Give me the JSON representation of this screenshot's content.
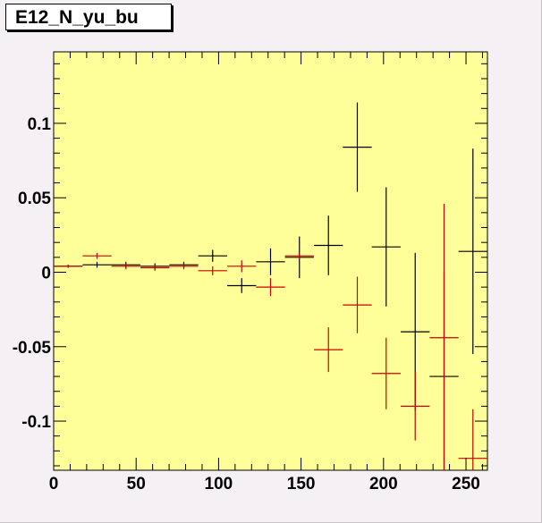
{
  "title": "E12_N_yu_bu",
  "colors": {
    "canvas": "#f4f0f4",
    "plot_background": "#ffff99",
    "axes": "#000000",
    "series_black": "#000000",
    "series_red": "#cc0000"
  },
  "chart_data": {
    "type": "scatter",
    "title": "E12_N_yu_bu",
    "xlabel": "",
    "ylabel": "",
    "xlim": [
      0,
      263
    ],
    "ylim": [
      -0.133,
      0.148
    ],
    "grid": false,
    "legend": "none",
    "x_ticks": [
      0,
      50,
      100,
      150,
      200,
      250
    ],
    "x_tick_labels": [
      "0",
      "50",
      "100",
      "150",
      "200",
      "250"
    ],
    "y_ticks": [
      -0.1,
      -0.05,
      0,
      0.05,
      0.1
    ],
    "y_tick_labels": [
      "-0.1",
      "-0.05",
      "0",
      "0.05",
      "0.1"
    ],
    "series": [
      {
        "color": "#000000",
        "points": [
          {
            "x": 8.77,
            "y": 0.004,
            "ex": 8.77,
            "ey": 0.001
          },
          {
            "x": 26.3,
            "y": 0.005,
            "ex": 8.77,
            "ey": 0.002
          },
          {
            "x": 43.8,
            "y": 0.005,
            "ex": 8.77,
            "ey": 0.002
          },
          {
            "x": 61.4,
            "y": 0.004,
            "ex": 8.77,
            "ey": 0.002
          },
          {
            "x": 78.9,
            "y": 0.005,
            "ex": 8.77,
            "ey": 0.002
          },
          {
            "x": 96.4,
            "y": 0.011,
            "ex": 8.77,
            "ey": 0.004
          },
          {
            "x": 114,
            "y": -0.009,
            "ex": 8.77,
            "ey": 0.005
          },
          {
            "x": 131.5,
            "y": 0.007,
            "ex": 8.77,
            "ey": 0.009
          },
          {
            "x": 149,
            "y": 0.01,
            "ex": 8.77,
            "ey": 0.014
          },
          {
            "x": 166.6,
            "y": 0.018,
            "ex": 8.77,
            "ey": 0.02
          },
          {
            "x": 184.1,
            "y": 0.084,
            "ex": 8.77,
            "ey": 0.03
          },
          {
            "x": 201.6,
            "y": 0.017,
            "ex": 8.77,
            "ey": 0.04
          },
          {
            "x": 219.2,
            "y": -0.04,
            "ex": 8.77,
            "ey": 0.053
          },
          {
            "x": 236.7,
            "y": -0.07,
            "ex": 8.77,
            "ey": 0.07
          },
          {
            "x": 254.2,
            "y": 0.014,
            "ex": 8.77,
            "ey": 0.069
          }
        ]
      },
      {
        "color": "#cc0000",
        "points": [
          {
            "x": 8.77,
            "y": 0.004,
            "ex": 8.77,
            "ey": 0.001
          },
          {
            "x": 26.3,
            "y": 0.011,
            "ex": 8.77,
            "ey": 0.002
          },
          {
            "x": 43.8,
            "y": 0.004,
            "ex": 8.77,
            "ey": 0.002
          },
          {
            "x": 61.4,
            "y": 0.003,
            "ex": 8.77,
            "ey": 0.002
          },
          {
            "x": 78.9,
            "y": 0.004,
            "ex": 8.77,
            "ey": 0.002
          },
          {
            "x": 96.4,
            "y": 0.001,
            "ex": 8.77,
            "ey": 0.003
          },
          {
            "x": 114,
            "y": 0.004,
            "ex": 8.77,
            "ey": 0.004
          },
          {
            "x": 131.5,
            "y": -0.01,
            "ex": 8.77,
            "ey": 0.006
          },
          {
            "x": 149,
            "y": 0.011,
            "ex": 8.77,
            "ey": 0.002
          },
          {
            "x": 166.6,
            "y": -0.052,
            "ex": 8.77,
            "ey": 0.015
          },
          {
            "x": 184.1,
            "y": -0.022,
            "ex": 8.77,
            "ey": 0.019
          },
          {
            "x": 201.6,
            "y": -0.068,
            "ex": 8.77,
            "ey": 0.024
          },
          {
            "x": 219.2,
            "y": -0.09,
            "ex": 8.77,
            "ey": 0.023
          },
          {
            "x": 236.7,
            "y": -0.044,
            "ex": 8.77,
            "ey": 0.09
          },
          {
            "x": 254.2,
            "y": -0.125,
            "ex": 8.77,
            "ey": 0.033
          }
        ]
      }
    ]
  }
}
